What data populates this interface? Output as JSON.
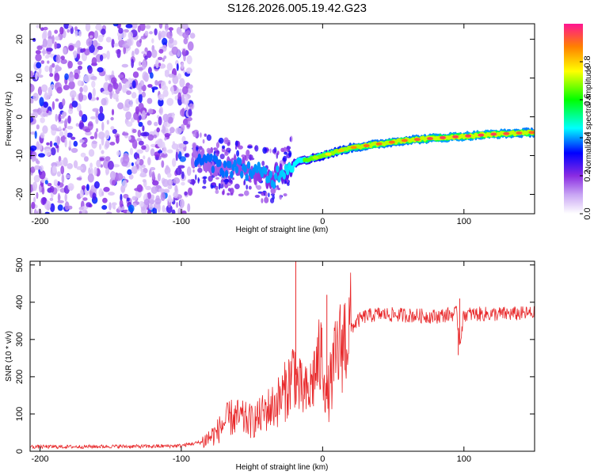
{
  "title": "S126.2026.005.19.42.G23",
  "chart_data": [
    {
      "type": "heatmap",
      "name": "spectrogram",
      "xlabel": "Height of straight line (km)",
      "ylabel": "Frequency (Hz)",
      "xlim": [
        -207,
        150
      ],
      "ylim": [
        -25,
        24
      ],
      "xticks": [
        -200,
        -100,
        0,
        100
      ],
      "yticks": [
        -20,
        -10,
        0,
        10,
        20
      ],
      "noise_region": {
        "x_range": [
          -207,
          -92
        ],
        "y_range": [
          -25,
          24
        ],
        "typical_amplitude": 0.05
      },
      "ridge": {
        "description": "frequency of peak spectral amplitude vs height",
        "x": [
          -92,
          -80,
          -70,
          -60,
          -50,
          -40,
          -35,
          -30,
          -25,
          -20,
          -15,
          -10,
          -5,
          0,
          10,
          20,
          30,
          40,
          60,
          80,
          100,
          120,
          150
        ],
        "y": [
          -10,
          -12,
          -13,
          -13,
          -14,
          -15,
          -16,
          -14,
          -13,
          -12,
          -11,
          -11,
          -10.5,
          -10,
          -9,
          -8,
          -7.5,
          -7,
          -6,
          -5.5,
          -5,
          -4.5,
          -4
        ],
        "amplitude": [
          0.3,
          0.35,
          0.35,
          0.4,
          0.4,
          0.45,
          0.45,
          0.5,
          0.55,
          0.6,
          0.6,
          0.65,
          0.7,
          0.75,
          0.8,
          0.85,
          0.9,
          0.9,
          0.9,
          0.95,
          0.95,
          0.95,
          0.9
        ]
      },
      "colorbar": {
        "label": "Normalized spectral amplitude",
        "range": [
          0,
          1
        ],
        "ticks": [
          "0.0",
          "0.2",
          "0.4",
          "0.6",
          "0.8"
        ]
      }
    },
    {
      "type": "line",
      "name": "snr",
      "xlabel": "Height of straight line (km)",
      "ylabel": "SNR (10 * v/v)",
      "xlim": [
        -207,
        150
      ],
      "ylim": [
        0,
        510
      ],
      "xticks": [
        -200,
        -100,
        0,
        100
      ],
      "yticks": [
        0,
        100,
        200,
        300,
        400,
        500
      ],
      "series": [
        {
          "name": "SNR",
          "color": "#e8282a",
          "x": [
            -207,
            -180,
            -150,
            -120,
            -100,
            -85,
            -75,
            -70,
            -65,
            -60,
            -55,
            -50,
            -45,
            -40,
            -35,
            -30,
            -25,
            -22,
            -20,
            -18,
            -15,
            -10,
            -5,
            0,
            3,
            5,
            10,
            15,
            20,
            25,
            30,
            40,
            60,
            80,
            95,
            97,
            100,
            120,
            150
          ],
          "y": [
            12,
            12,
            13,
            13,
            15,
            25,
            50,
            75,
            90,
            90,
            85,
            80,
            90,
            110,
            120,
            140,
            170,
            200,
            230,
            180,
            160,
            150,
            220,
            260,
            140,
            170,
            260,
            300,
            330,
            350,
            362,
            368,
            365,
            362,
            370,
            290,
            368,
            368,
            370
          ],
          "noise_amplitude": 25,
          "spikes": [
            {
              "x": -19,
              "y": 510
            },
            {
              "x": 3,
              "y": 420
            },
            {
              "x": -1,
              "y": 340
            },
            {
              "x": 96,
              "y": 258
            },
            {
              "x": 97,
              "y": 410
            }
          ]
        }
      ]
    }
  ]
}
